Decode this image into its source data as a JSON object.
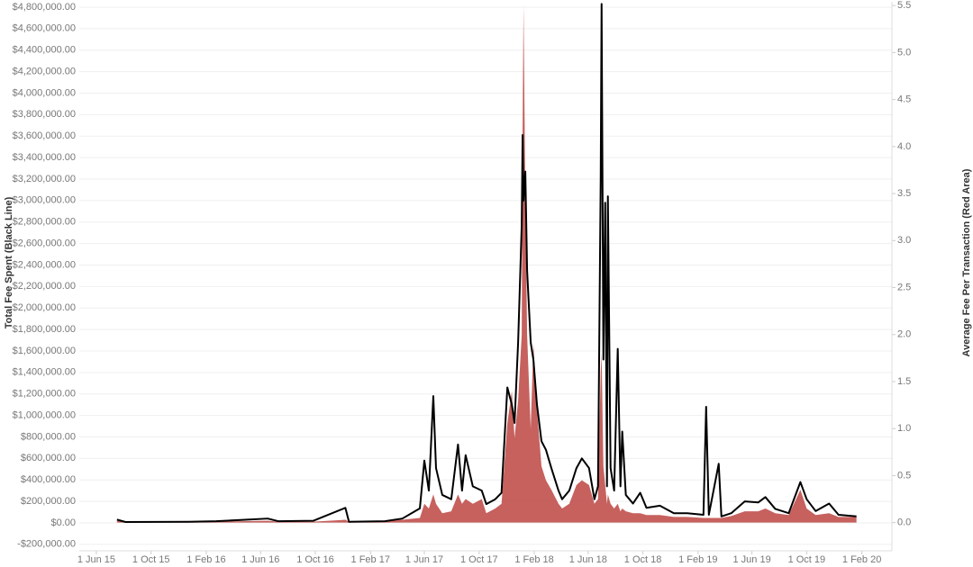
{
  "chart_data": {
    "type": "line",
    "y_title": "Total Fee Spent  (Black Line)",
    "y2_title": "Average Fee Per Transaction (Red Area)",
    "grid": true,
    "xlim": [
      "2015-04-24",
      "2020-04-08"
    ],
    "xticks": [
      {
        "value": "2015-06-01",
        "label": "1 Jun 15"
      },
      {
        "value": "2015-10-01",
        "label": "1 Oct 15"
      },
      {
        "value": "2016-02-01",
        "label": "1 Feb 16"
      },
      {
        "value": "2016-06-01",
        "label": "1 Jun 16"
      },
      {
        "value": "2016-10-01",
        "label": "1 Oct 16"
      },
      {
        "value": "2017-02-01",
        "label": "1 Feb 17"
      },
      {
        "value": "2017-06-01",
        "label": "1 Jun 17"
      },
      {
        "value": "2017-10-01",
        "label": "1 Oct 17"
      },
      {
        "value": "2018-02-01",
        "label": "1 Feb 18"
      },
      {
        "value": "2018-06-01",
        "label": "1 Jun 18"
      },
      {
        "value": "2018-10-01",
        "label": "1 Oct 18"
      },
      {
        "value": "2019-02-01",
        "label": "1 Feb 19"
      },
      {
        "value": "2019-06-01",
        "label": "1 Jun 19"
      },
      {
        "value": "2019-10-01",
        "label": "1 Oct 19"
      },
      {
        "value": "2020-02-01",
        "label": "1 Feb 20"
      }
    ],
    "ylim": [
      -260000,
      4850000
    ],
    "yticks": [
      {
        "value": -200000,
        "label": "-$200,000.00"
      },
      {
        "value": 0,
        "label": "$0.00"
      },
      {
        "value": 200000,
        "label": "$200,000.00"
      },
      {
        "value": 400000,
        "label": "$400,000.00"
      },
      {
        "value": 600000,
        "label": "$600,000.00"
      },
      {
        "value": 800000,
        "label": "$800,000.00"
      },
      {
        "value": 1000000,
        "label": "$1,000,000.00"
      },
      {
        "value": 1200000,
        "label": "$1,200,000.00"
      },
      {
        "value": 1400000,
        "label": "$1,400,000.00"
      },
      {
        "value": 1600000,
        "label": "$1,600,000.00"
      },
      {
        "value": 1800000,
        "label": "$1,800,000.00"
      },
      {
        "value": 2000000,
        "label": "$2,000,000.00"
      },
      {
        "value": 2200000,
        "label": "$2,200,000.00"
      },
      {
        "value": 2400000,
        "label": "$2,400,000.00"
      },
      {
        "value": 2600000,
        "label": "$2,600,000.00"
      },
      {
        "value": 2800000,
        "label": "$2,800,000.00"
      },
      {
        "value": 3000000,
        "label": "$3,000,000.00"
      },
      {
        "value": 3200000,
        "label": "$3,200,000.00"
      },
      {
        "value": 3400000,
        "label": "$3,400,000.00"
      },
      {
        "value": 3600000,
        "label": "$3,600,000.00"
      },
      {
        "value": 3800000,
        "label": "$3,800,000.00"
      },
      {
        "value": 4000000,
        "label": "$4,000,000.00"
      },
      {
        "value": 4200000,
        "label": "$4,200,000.00"
      },
      {
        "value": 4400000,
        "label": "$4,400,000.00"
      },
      {
        "value": 4600000,
        "label": "$4,600,000.00"
      },
      {
        "value": 4800000,
        "label": "$4,800,000.00"
      }
    ],
    "y2lim": [
      -0.3,
      5.54
    ],
    "y2ticks": [
      {
        "value": 0,
        "label": "0.0"
      },
      0.5,
      {
        "value": 1,
        "label": "1.0"
      },
      1.5,
      {
        "value": 2,
        "label": "2.0"
      },
      2.5,
      {
        "value": 3,
        "label": "3.0"
      },
      3.5,
      {
        "value": 4,
        "label": "4.0"
      },
      4.5,
      {
        "value": 5,
        "label": "5.0"
      },
      5.5
    ],
    "x": [
      "2015-07-17",
      "2015-08-05",
      "2015-12-25",
      "2016-02-23",
      "2016-06-17",
      "2016-07-11",
      "2016-09-27",
      "2016-12-07",
      "2016-12-15",
      "2017-03-05",
      "2017-04-13",
      "2017-05-22",
      "2017-06-01",
      "2017-06-11",
      "2017-06-21",
      "2017-06-27",
      "2017-07-11",
      "2017-07-31",
      "2017-08-15",
      "2017-08-24",
      "2017-09-01",
      "2017-09-17",
      "2017-10-07",
      "2017-10-17",
      "2017-11-06",
      "2017-11-20",
      "2017-12-03",
      "2017-12-13",
      "2017-12-19",
      "2017-12-27",
      "2018-01-04",
      "2018-01-06",
      "2018-01-08",
      "2018-01-12",
      "2018-01-16",
      "2018-01-24",
      "2018-01-30",
      "2018-02-07",
      "2018-02-17",
      "2018-02-27",
      "2018-03-11",
      "2018-03-27",
      "2018-04-04",
      "2018-04-20",
      "2018-05-06",
      "2018-05-18",
      "2018-06-03",
      "2018-06-15",
      "2018-06-23",
      "2018-06-29",
      "2018-07-01",
      "2018-07-05",
      "2018-07-09",
      "2018-07-13",
      "2018-07-15",
      "2018-07-21",
      "2018-07-29",
      "2018-08-06",
      "2018-08-12",
      "2018-08-16",
      "2018-08-24",
      "2018-09-09",
      "2018-09-25",
      "2018-10-09",
      "2018-11-08",
      "2018-12-09",
      "2019-01-08",
      "2019-02-13",
      "2019-02-19",
      "2019-02-25",
      "2019-03-19",
      "2019-03-25",
      "2019-04-16",
      "2019-05-16",
      "2019-06-15",
      "2019-07-01",
      "2019-07-23",
      "2019-08-22",
      "2019-09-17",
      "2019-10-01",
      "2019-10-21",
      "2019-11-20",
      "2019-12-11",
      "2020-01-20"
    ],
    "series": [
      {
        "mark": "area",
        "axis": "y2",
        "color": "#c0504d",
        "values": [
          0.02,
          0.01,
          0.01,
          0.01,
          0.02,
          0.01,
          0.01,
          0.03,
          0.01,
          0.02,
          0.03,
          0.05,
          0.2,
          0.15,
          0.3,
          0.2,
          0.1,
          0.12,
          0.3,
          0.2,
          0.25,
          0.2,
          0.25,
          0.1,
          0.15,
          0.2,
          1.06,
          1.4,
          0.9,
          1.3,
          2.0,
          4.2,
          5.5,
          3.5,
          2.0,
          1.0,
          1.9,
          1.2,
          0.6,
          0.45,
          0.35,
          0.2,
          0.15,
          0.2,
          0.4,
          0.45,
          0.4,
          0.2,
          0.25,
          1.6,
          1.8,
          0.6,
          0.4,
          0.2,
          0.3,
          0.2,
          0.15,
          0.2,
          0.12,
          0.15,
          0.12,
          0.1,
          0.1,
          0.08,
          0.08,
          0.06,
          0.06,
          0.05,
          0.05,
          0.05,
          0.05,
          0.05,
          0.07,
          0.12,
          0.12,
          0.15,
          0.1,
          0.08,
          0.35,
          0.15,
          0.08,
          0.1,
          0.06,
          0.06
        ]
      },
      {
        "mark": "line",
        "axis": "y",
        "color": "#000000",
        "values": [
          30000,
          8000,
          10000,
          15000,
          40000,
          15000,
          20000,
          140000,
          10000,
          15000,
          40000,
          135000,
          580000,
          300000,
          1180000,
          510000,
          260000,
          220000,
          730000,
          300000,
          630000,
          340000,
          300000,
          175000,
          220000,
          280000,
          1260000,
          1100000,
          930000,
          1680000,
          2770000,
          3610000,
          3000000,
          3270000,
          2350000,
          1680000,
          1520000,
          1100000,
          760000,
          680000,
          510000,
          300000,
          220000,
          300000,
          510000,
          600000,
          510000,
          220000,
          340000,
          3200000,
          4830000,
          1520000,
          2980000,
          340000,
          3040000,
          510000,
          300000,
          1620000,
          340000,
          850000,
          260000,
          180000,
          280000,
          140000,
          160000,
          90000,
          90000,
          75000,
          1080000,
          75000,
          550000,
          60000,
          90000,
          200000,
          190000,
          240000,
          130000,
          90000,
          380000,
          220000,
          110000,
          180000,
          75000,
          60000
        ]
      }
    ]
  }
}
